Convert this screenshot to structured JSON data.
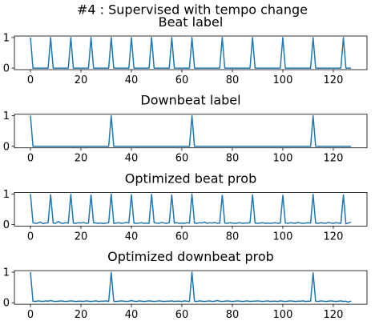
{
  "title": "#4 : Supervised with tempo change",
  "chart_data": [
    {
      "type": "line",
      "title": "Beat label",
      "color": "#1f77b4",
      "xlim": [
        -6.35,
        133.35
      ],
      "ylim": [
        -0.05,
        1.05
      ],
      "xticks": [
        0,
        20,
        40,
        60,
        80,
        100,
        120
      ],
      "yticks": [
        0,
        1
      ],
      "x": [
        0,
        1,
        2,
        3,
        4,
        5,
        6,
        7,
        8,
        9,
        10,
        11,
        12,
        13,
        14,
        15,
        16,
        17,
        18,
        19,
        20,
        21,
        22,
        23,
        24,
        25,
        26,
        27,
        28,
        29,
        30,
        31,
        32,
        33,
        34,
        35,
        36,
        37,
        38,
        39,
        40,
        41,
        42,
        43,
        44,
        45,
        46,
        47,
        48,
        49,
        50,
        51,
        52,
        53,
        54,
        55,
        56,
        57,
        58,
        59,
        60,
        61,
        62,
        63,
        64,
        65,
        66,
        67,
        68,
        69,
        70,
        71,
        72,
        73,
        74,
        75,
        76,
        77,
        78,
        79,
        80,
        81,
        82,
        83,
        84,
        85,
        86,
        87,
        88,
        89,
        90,
        91,
        92,
        93,
        94,
        95,
        96,
        97,
        98,
        99,
        100,
        101,
        102,
        103,
        104,
        105,
        106,
        107,
        108,
        109,
        110,
        111,
        112,
        113,
        114,
        115,
        116,
        117,
        118,
        119,
        120,
        121,
        122,
        123,
        124,
        125,
        126,
        127
      ],
      "values": [
        1,
        0,
        0,
        0,
        0,
        0,
        0,
        0,
        1,
        0,
        0,
        0,
        0,
        0,
        0,
        0,
        1,
        0,
        0,
        0,
        0,
        0,
        0,
        0,
        1,
        0,
        0,
        0,
        0,
        0,
        0,
        0,
        1,
        0,
        0,
        0,
        0,
        0,
        0,
        0,
        1,
        0,
        0,
        0,
        0,
        0,
        0,
        0,
        1,
        0,
        0,
        0,
        0,
        0,
        0,
        0,
        1,
        0,
        0,
        0,
        0,
        0,
        0,
        0,
        1,
        0,
        0,
        0,
        0,
        0,
        0,
        0,
        0,
        0,
        0,
        0,
        1,
        0,
        0,
        0,
        0,
        0,
        0,
        0,
        0,
        0,
        0,
        0,
        1,
        0,
        0,
        0,
        0,
        0,
        0,
        0,
        0,
        0,
        0,
        0,
        1,
        0,
        0,
        0,
        0,
        0,
        0,
        0,
        0,
        0,
        0,
        0,
        1,
        0,
        0,
        0,
        0,
        0,
        0,
        0,
        0,
        0,
        0,
        0,
        1,
        0,
        0,
        0
      ]
    },
    {
      "type": "line",
      "title": "Downbeat label",
      "color": "#1f77b4",
      "xlim": [
        -6.35,
        133.35
      ],
      "ylim": [
        -0.05,
        1.05
      ],
      "xticks": [
        0,
        20,
        40,
        60,
        80,
        100,
        120
      ],
      "yticks": [
        0,
        1
      ],
      "x": [
        0,
        1,
        2,
        3,
        4,
        5,
        6,
        7,
        8,
        9,
        10,
        11,
        12,
        13,
        14,
        15,
        16,
        17,
        18,
        19,
        20,
        21,
        22,
        23,
        24,
        25,
        26,
        27,
        28,
        29,
        30,
        31,
        32,
        33,
        34,
        35,
        36,
        37,
        38,
        39,
        40,
        41,
        42,
        43,
        44,
        45,
        46,
        47,
        48,
        49,
        50,
        51,
        52,
        53,
        54,
        55,
        56,
        57,
        58,
        59,
        60,
        61,
        62,
        63,
        64,
        65,
        66,
        67,
        68,
        69,
        70,
        71,
        72,
        73,
        74,
        75,
        76,
        77,
        78,
        79,
        80,
        81,
        82,
        83,
        84,
        85,
        86,
        87,
        88,
        89,
        90,
        91,
        92,
        93,
        94,
        95,
        96,
        97,
        98,
        99,
        100,
        101,
        102,
        103,
        104,
        105,
        106,
        107,
        108,
        109,
        110,
        111,
        112,
        113,
        114,
        115,
        116,
        117,
        118,
        119,
        120,
        121,
        122,
        123,
        124,
        125,
        126,
        127
      ],
      "values": [
        1,
        0,
        0,
        0,
        0,
        0,
        0,
        0,
        0,
        0,
        0,
        0,
        0,
        0,
        0,
        0,
        0,
        0,
        0,
        0,
        0,
        0,
        0,
        0,
        0,
        0,
        0,
        0,
        0,
        0,
        0,
        0,
        1,
        0,
        0,
        0,
        0,
        0,
        0,
        0,
        0,
        0,
        0,
        0,
        0,
        0,
        0,
        0,
        0,
        0,
        0,
        0,
        0,
        0,
        0,
        0,
        0,
        0,
        0,
        0,
        0,
        0,
        0,
        0,
        1,
        0,
        0,
        0,
        0,
        0,
        0,
        0,
        0,
        0,
        0,
        0,
        0,
        0,
        0,
        0,
        0,
        0,
        0,
        0,
        0,
        0,
        0,
        0,
        0,
        0,
        0,
        0,
        0,
        0,
        0,
        0,
        0,
        0,
        0,
        0,
        0,
        0,
        0,
        0,
        0,
        0,
        0,
        0,
        0,
        0,
        0,
        0,
        1,
        0,
        0,
        0,
        0,
        0,
        0,
        0,
        0,
        0,
        0,
        0,
        0,
        0,
        0,
        0
      ]
    },
    {
      "type": "line",
      "title": "Optimized beat prob",
      "color": "#1f77b4",
      "xlim": [
        -6.35,
        133.35
      ],
      "ylim": [
        -0.05,
        1.05
      ],
      "xticks": [
        0,
        20,
        40,
        60,
        80,
        100,
        120
      ],
      "yticks": [
        0,
        1
      ],
      "x": [
        0,
        1,
        2,
        3,
        4,
        5,
        6,
        7,
        8,
        9,
        10,
        11,
        12,
        13,
        14,
        15,
        16,
        17,
        18,
        19,
        20,
        21,
        22,
        23,
        24,
        25,
        26,
        27,
        28,
        29,
        30,
        31,
        32,
        33,
        34,
        35,
        36,
        37,
        38,
        39,
        40,
        41,
        42,
        43,
        44,
        45,
        46,
        47,
        48,
        49,
        50,
        51,
        52,
        53,
        54,
        55,
        56,
        57,
        58,
        59,
        60,
        61,
        62,
        63,
        64,
        65,
        66,
        67,
        68,
        69,
        70,
        71,
        72,
        73,
        74,
        75,
        76,
        77,
        78,
        79,
        80,
        81,
        82,
        83,
        84,
        85,
        86,
        87,
        88,
        89,
        90,
        91,
        92,
        93,
        94,
        95,
        96,
        97,
        98,
        99,
        100,
        101,
        102,
        103,
        104,
        105,
        106,
        107,
        108,
        109,
        110,
        111,
        112,
        113,
        114,
        115,
        116,
        117,
        118,
        119,
        120,
        121,
        122,
        123,
        124,
        125,
        126,
        127
      ],
      "values": [
        1.0,
        0.06,
        0.04,
        0.05,
        0.08,
        0.03,
        0.05,
        0.06,
        0.98,
        0.05,
        0.04,
        0.1,
        0.05,
        0.04,
        0.06,
        0.05,
        0.99,
        0.05,
        0.04,
        0.06,
        0.05,
        0.07,
        0.04,
        0.05,
        0.97,
        0.06,
        0.05,
        0.04,
        0.05,
        0.03,
        0.05,
        0.06,
        1.0,
        0.04,
        0.05,
        0.06,
        0.04,
        0.05,
        0.07,
        0.05,
        0.98,
        0.05,
        0.04,
        0.05,
        0.06,
        0.04,
        0.05,
        0.04,
        0.99,
        0.06,
        0.05,
        0.04,
        0.07,
        0.05,
        0.04,
        0.06,
        0.97,
        0.05,
        0.06,
        0.04,
        0.05,
        0.04,
        0.06,
        0.05,
        1.0,
        0.05,
        0.04,
        0.06,
        0.05,
        0.08,
        0.04,
        0.06,
        0.05,
        0.07,
        0.04,
        0.05,
        0.96,
        0.05,
        0.04,
        0.06,
        0.05,
        0.04,
        0.05,
        0.06,
        0.04,
        0.05,
        0.05,
        0.06,
        0.97,
        0.05,
        0.04,
        0.05,
        0.06,
        0.04,
        0.05,
        0.04,
        0.05,
        0.06,
        0.04,
        0.05,
        0.96,
        0.05,
        0.04,
        0.06,
        0.05,
        0.04,
        0.07,
        0.05,
        0.04,
        0.05,
        0.06,
        0.05,
        0.99,
        0.05,
        0.04,
        0.06,
        0.05,
        0.04,
        0.07,
        0.05,
        0.04,
        0.06,
        0.05,
        0.04,
        0.97,
        0.02,
        0.05,
        0.08
      ]
    },
    {
      "type": "line",
      "title": "Optimized downbeat prob",
      "color": "#1f77b4",
      "xlim": [
        -6.35,
        133.35
      ],
      "ylim": [
        -0.05,
        1.05
      ],
      "xticks": [
        0,
        20,
        40,
        60,
        80,
        100,
        120
      ],
      "yticks": [
        0,
        1
      ],
      "x": [
        0,
        1,
        2,
        3,
        4,
        5,
        6,
        7,
        8,
        9,
        10,
        11,
        12,
        13,
        14,
        15,
        16,
        17,
        18,
        19,
        20,
        21,
        22,
        23,
        24,
        25,
        26,
        27,
        28,
        29,
        30,
        31,
        32,
        33,
        34,
        35,
        36,
        37,
        38,
        39,
        40,
        41,
        42,
        43,
        44,
        45,
        46,
        47,
        48,
        49,
        50,
        51,
        52,
        53,
        54,
        55,
        56,
        57,
        58,
        59,
        60,
        61,
        62,
        63,
        64,
        65,
        66,
        67,
        68,
        69,
        70,
        71,
        72,
        73,
        74,
        75,
        76,
        77,
        78,
        79,
        80,
        81,
        82,
        83,
        84,
        85,
        86,
        87,
        88,
        89,
        90,
        91,
        92,
        93,
        94,
        95,
        96,
        97,
        98,
        99,
        100,
        101,
        102,
        103,
        104,
        105,
        106,
        107,
        108,
        109,
        110,
        111,
        112,
        113,
        114,
        115,
        116,
        117,
        118,
        119,
        120,
        121,
        122,
        123,
        124,
        125,
        126,
        127
      ],
      "values": [
        1.0,
        0.05,
        0.04,
        0.06,
        0.05,
        0.04,
        0.06,
        0.05,
        0.07,
        0.05,
        0.04,
        0.05,
        0.06,
        0.05,
        0.04,
        0.05,
        0.06,
        0.05,
        0.04,
        0.05,
        0.05,
        0.04,
        0.06,
        0.05,
        0.04,
        0.05,
        0.06,
        0.04,
        0.05,
        0.05,
        0.06,
        0.04,
        0.99,
        0.05,
        0.04,
        0.05,
        0.06,
        0.05,
        0.04,
        0.05,
        0.07,
        0.05,
        0.04,
        0.06,
        0.05,
        0.04,
        0.05,
        0.06,
        0.05,
        0.04,
        0.05,
        0.06,
        0.05,
        0.04,
        0.05,
        0.05,
        0.06,
        0.04,
        0.05,
        0.05,
        0.04,
        0.06,
        0.05,
        0.04,
        1.0,
        0.05,
        0.04,
        0.06,
        0.05,
        0.04,
        0.05,
        0.06,
        0.04,
        0.05,
        0.07,
        0.05,
        0.04,
        0.05,
        0.06,
        0.05,
        0.04,
        0.05,
        0.06,
        0.05,
        0.04,
        0.05,
        0.06,
        0.04,
        0.05,
        0.05,
        0.06,
        0.05,
        0.04,
        0.05,
        0.06,
        0.04,
        0.05,
        0.05,
        0.04,
        0.06,
        0.05,
        0.04,
        0.05,
        0.06,
        0.05,
        0.04,
        0.05,
        0.05,
        0.06,
        0.04,
        0.05,
        0.05,
        0.98,
        0.05,
        0.04,
        0.06,
        0.05,
        0.04,
        0.05,
        0.06,
        0.05,
        0.04,
        0.05,
        0.06,
        0.04,
        0.05,
        0.02,
        0.06
      ]
    }
  ]
}
